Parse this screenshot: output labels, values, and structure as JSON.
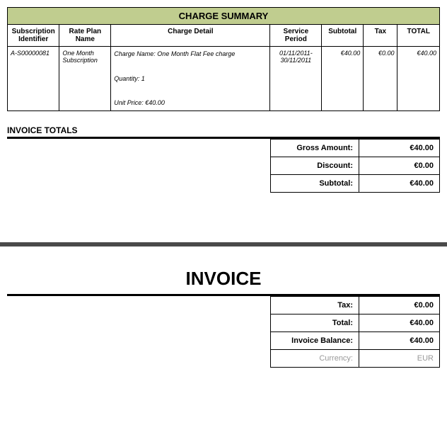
{
  "chargeSummary": {
    "title": "CHARGE SUMMARY",
    "headers": {
      "subscription": "Subscription Identifier",
      "plan": "Rate Plan Name",
      "detail": "Charge Detail",
      "period": "Service Period",
      "subtotal": "Subtotal",
      "tax": "Tax",
      "total": "TOTAL"
    },
    "row": {
      "subscription": "A-S00000081",
      "plan": "One Month Subscription",
      "detail_charge_name": "Charge Name: One Month Flat Fee charge",
      "detail_quantity": "Quantity:  1",
      "detail_unit_price": "Unit Price:  €40.00",
      "period": "01/11/2011-30/11/2011",
      "subtotal": "€40.00",
      "tax": "€0.00",
      "total": "€40.00"
    }
  },
  "invoiceTotals": {
    "title": "INVOICE TOTALS",
    "gross_label": "Gross Amount:",
    "gross_value": "€40.00",
    "discount_label": "Discount:",
    "discount_value": "€0.00",
    "subtotal_label": "Subtotal:",
    "subtotal_value": "€40.00"
  },
  "invoice": {
    "title": "INVOICE",
    "tax_label": "Tax:",
    "tax_value": "€0.00",
    "total_label": "Total:",
    "total_value": "€40.00",
    "balance_label": "Invoice Balance:",
    "balance_value": "€40.00",
    "currency_label": "Currency:",
    "currency_value": "EUR"
  },
  "style": {
    "header_bg": "#c0cd8f",
    "border_color": "#000000",
    "muted_color": "#999999",
    "title_fontsize_pt": 13,
    "body_fontsize_pt": 11,
    "table_fontsize_pt": 9
  }
}
